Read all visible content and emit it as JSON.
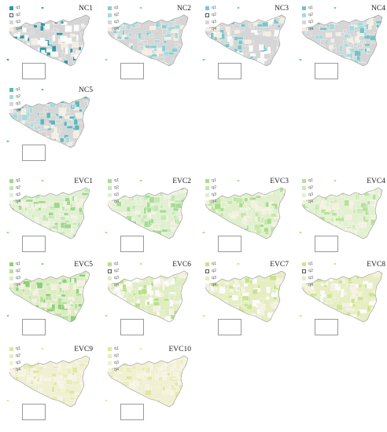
{
  "panels": [
    {
      "title": "NC1",
      "legend": [
        "q1",
        "q2",
        "q3",
        "q4"
      ],
      "colors": [
        "#2b9aa8",
        "#ffffff",
        "#d6d6d6",
        "#f4eee2"
      ]
    },
    {
      "title": "NC2",
      "legend": [
        "q1",
        "q2",
        "q3",
        "q4"
      ],
      "colors": [
        "#8ccfd0",
        "#a9dadb",
        "#d6d6d6",
        "#f4eee2"
      ]
    },
    {
      "title": "NC3",
      "legend": [
        "q1",
        "q2",
        "q3",
        "q4"
      ],
      "colors": [
        "#7cc6c8",
        "#ffffff",
        "#d6d6d6",
        "#f4eee2"
      ]
    },
    {
      "title": "NC4",
      "legend": [
        "q1",
        "q2",
        "q3",
        "q4"
      ],
      "colors": [
        "#76c2c4",
        "#a9dadb",
        "#d6d6d6",
        "#f4eee2"
      ]
    },
    {
      "title": "NC5",
      "legend": [
        "q1",
        "q2",
        "q3",
        "q4"
      ],
      "colors": [
        "#5fb7bb",
        "#a9dadb",
        "#d6d6d6",
        "#f4eee2"
      ]
    },
    {
      "title": "EVC1",
      "legend": [
        "q1",
        "q2",
        "q3",
        "q4"
      ],
      "colors": [
        "#9ed88a",
        "#c2e6b0",
        "#e2f0d2",
        "#f5f0e2"
      ]
    },
    {
      "title": "EVC2",
      "legend": [
        "q1",
        "q2",
        "q3",
        "q4"
      ],
      "colors": [
        "#a6dc95",
        "#c6e8b6",
        "#e2f0d2",
        "#f5f0e2"
      ]
    },
    {
      "title": "EVC3",
      "legend": [
        "q1",
        "q2",
        "q3",
        "q4"
      ],
      "colors": [
        "#a9dd8c",
        "#c6e7a8",
        "#e1efcd",
        "#f5f0e2"
      ]
    },
    {
      "title": "EVC4",
      "legend": [
        "q1",
        "q2",
        "q3",
        "q4"
      ],
      "colors": [
        "#b6e198",
        "#cfeab3",
        "#e4f0d2",
        "#f5f0e2"
      ]
    },
    {
      "title": "EVC5",
      "legend": [
        "q1",
        "q2",
        "q3",
        "q4"
      ],
      "colors": [
        "#8fcf7a",
        "#b8e09c",
        "#dcecc2",
        "#f5f0e2"
      ]
    },
    {
      "title": "EVC6",
      "legend": [
        "q1",
        "q2",
        "q3",
        "q4"
      ],
      "colors": [
        "#b9df87",
        "#ffffff",
        "#e0ecc2",
        "#f5f0e2"
      ]
    },
    {
      "title": "EVC7",
      "legend": [
        "q1",
        "q2",
        "q3",
        "q4"
      ],
      "colors": [
        "#c9e38c",
        "#ffffff",
        "#e5edc2",
        "#f5f0e2"
      ]
    },
    {
      "title": "EVC8",
      "legend": [
        "q1",
        "q2",
        "q3",
        "q4"
      ],
      "colors": [
        "#cfe58e",
        "#ffffff",
        "#e7eec4",
        "#f5f0e2"
      ]
    },
    {
      "title": "EVC9",
      "legend": [
        "q1",
        "q2",
        "q3",
        "q4"
      ],
      "colors": [
        "#dfe7a4",
        "#e8ecbc",
        "#f0f0d2",
        "#f7f2e4"
      ]
    },
    {
      "title": "EVC10",
      "legend": [
        "q1",
        "q2",
        "q3",
        "q4"
      ],
      "colors": [
        "#e1e7a2",
        "#e9ecbb",
        "#f0f0d2",
        "#f7f2e4"
      ]
    }
  ]
}
